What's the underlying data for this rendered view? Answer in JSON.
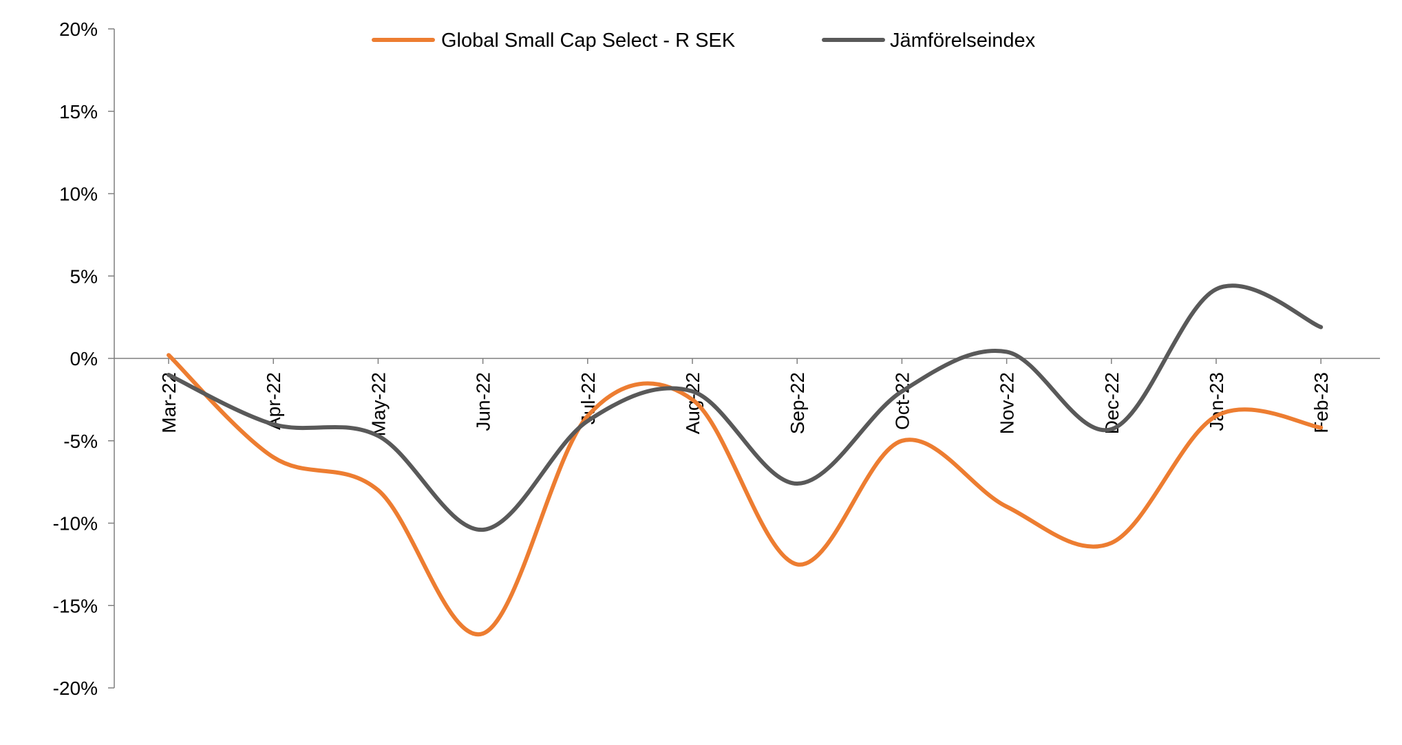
{
  "chart_data": {
    "type": "line",
    "title": "",
    "xlabel": "",
    "ylabel": "",
    "categories": [
      "Mar-22",
      "Apr-22",
      "May-22",
      "Jun-22",
      "Jul-22",
      "Aug-22",
      "Sep-22",
      "Oct-22",
      "Nov-22",
      "Dec-22",
      "Jan-23",
      "Feb-23"
    ],
    "ylim": [
      -20,
      20
    ],
    "y_ticks": [
      20,
      15,
      10,
      5,
      0,
      -5,
      -10,
      -15,
      -20
    ],
    "y_tick_labels": [
      "20%",
      "15%",
      "10%",
      "5%",
      "0%",
      "-5%",
      "-10%",
      "-15%",
      "-20%"
    ],
    "grid": false,
    "legend_position": "top-center",
    "smooth": true,
    "series": [
      {
        "name": "Global Small Cap Select - R SEK",
        "color": "#ED7D31",
        "values": [
          0.2,
          -6.0,
          -8.0,
          -16.7,
          -3.5,
          -2.5,
          -12.5,
          -5.0,
          -9.0,
          -11.2,
          -3.5,
          -4.2
        ]
      },
      {
        "name": "Jämförelseindex",
        "color": "#595959",
        "values": [
          -1.0,
          -4.0,
          -4.7,
          -10.4,
          -3.8,
          -2.0,
          -7.6,
          -2.0,
          0.4,
          -4.3,
          4.2,
          1.9
        ]
      }
    ]
  }
}
